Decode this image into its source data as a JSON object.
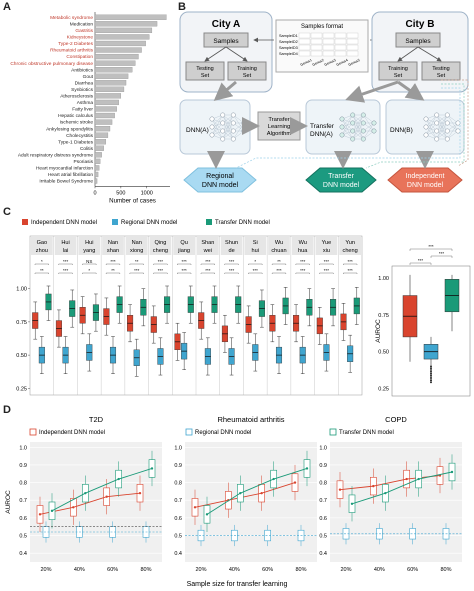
{
  "panels": {
    "a": "A",
    "b": "B",
    "c": "C",
    "d": "D"
  },
  "panel_a": {
    "chart_data": {
      "type": "bar",
      "orientation": "horizontal",
      "categories": [
        "Metabolic syndrome",
        "Medication",
        "Gastritis",
        "Kidneystone",
        "Type-2 Diabetes",
        "Rheumatoid arthritis",
        "Constipation",
        "Chronic obstructive pulmonary disease",
        "Antibiotics",
        "Gout",
        "Diarrhea",
        "Synbiotics",
        "Atherosclerosis",
        "Asthma",
        "Fatty liver",
        "Hepatic calculus",
        "Ischemic stroke",
        "Ankylosing spondylitis",
        "Cholecystitis",
        "Type-1 Diabetes",
        "Colitis",
        "Adult respiratory distress syndrome",
        "Psoriasis",
        "Heart myocardial infarction",
        "Heart atrial fibrillation",
        "Irritable Bowel Syndrome"
      ],
      "highlighted": [
        true,
        false,
        true,
        true,
        true,
        true,
        true,
        true,
        false,
        false,
        false,
        false,
        false,
        false,
        false,
        false,
        false,
        false,
        false,
        false,
        false,
        false,
        false,
        false,
        false,
        false
      ],
      "values": [
        1380,
        1200,
        1100,
        1050,
        980,
        900,
        840,
        780,
        720,
        640,
        600,
        560,
        500,
        460,
        420,
        380,
        330,
        290,
        250,
        210,
        170,
        130,
        100,
        80,
        60,
        40
      ],
      "xticks": [
        "0",
        "500",
        "1000"
      ],
      "xlim": [
        0,
        1450
      ],
      "xlabel": "Number of cases",
      "colors": {
        "bar": "#bfbfbf",
        "highlight_text": "#c0392b",
        "normal_text": "#222222"
      }
    }
  },
  "panel_b": {
    "city_a": "City A",
    "city_b": "City B",
    "samples": "Samples",
    "testing_set": "Testing\nSet",
    "training_set": "Training\nSet",
    "samples_format": "Samples format",
    "sample_ids": [
      "SampleID1",
      "SampleID2",
      "SampleID3",
      "SampleID4"
    ],
    "genus_ids": [
      "Genus1",
      "Genus2",
      "Genus3",
      "Genus4",
      "Genus5"
    ],
    "dnn_a": "DNN(A)",
    "transfer_algo": "Transfer\nLearning\nAlgorithm",
    "transfer_dnn": "Transfer\nDNN(A)",
    "dnn_b": "DNN(B)",
    "regional": "Regional\nDNN model",
    "transfer_model": "Transfer\nDNN model",
    "independent": "Independent\nDNN model",
    "colors": {
      "regional": "#a9daf2",
      "transfer": "#1c9a80",
      "independent": "#e8735a"
    }
  },
  "panel_c": {
    "legend": [
      "Independent DNN model",
      "Regional DNN model",
      "Transfer DNN model"
    ],
    "cities": [
      "Gao zhou",
      "Hui lai",
      "Hui yang",
      "Nan shan",
      "Nan xiong",
      "Qing cheng",
      "Qu jiang",
      "Shan wei",
      "Shun de",
      "Si hui",
      "Wu chuan",
      "Wu hua",
      "Yue xiu",
      "Yun cheng"
    ],
    "sig_top": [
      "*",
      "***",
      "NS",
      "***",
      "**",
      "***",
      "***",
      "***",
      "***",
      "*",
      "**",
      "***",
      "***",
      "***"
    ],
    "sig_bottom": [
      "**",
      "***",
      "*",
      "**",
      "***",
      "***",
      "***",
      "***",
      "***",
      "***",
      "***",
      "***",
      "***",
      "***"
    ],
    "yticks": [
      "0.25",
      "0.50",
      "0.75",
      "1.00"
    ],
    "ylabel": "AUROC",
    "summary_sig": [
      "***",
      "***",
      "***"
    ],
    "colors": {
      "independent": "#d9442e",
      "regional": "#3fa5cf",
      "transfer": "#1a9a78"
    }
  },
  "panel_d": {
    "titles": [
      "T2D",
      "Rheumatoid arthritis",
      "COPD"
    ],
    "legend": [
      "Independent DNN model",
      "Regional DNN model",
      "Transfer DNN model"
    ],
    "xticks": [
      "20%",
      "40%",
      "60%",
      "80%"
    ],
    "yticks": [
      "0.4",
      "0.5",
      "0.6",
      "0.7",
      "0.8",
      "0.9",
      "1.0"
    ],
    "ylabel": "AUROC",
    "xlabel": "Sample size for transfer learning"
  }
}
